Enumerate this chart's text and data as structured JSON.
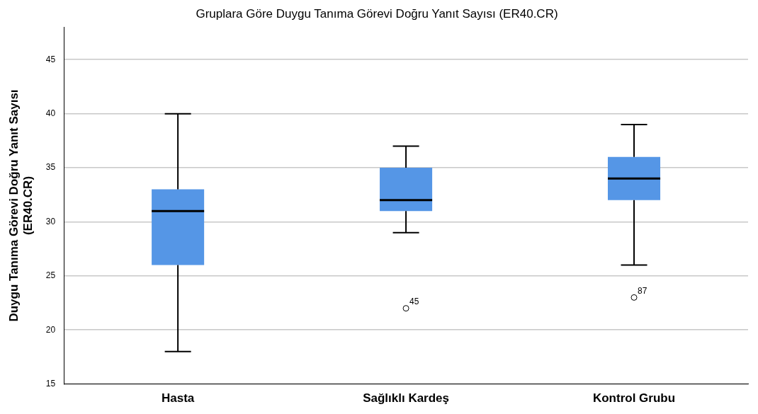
{
  "chart_data": {
    "type": "box",
    "title": "Gruplara Göre Duygu Tanıma Görevi Doğru Yanıt Sayısı (ER40.CR)",
    "ylabel": "Duygu Tanıma Görevi Doğru Yanıt Sayısı (ER40.CR)",
    "categories": [
      "Hasta",
      "Sağlıklı Kardeş",
      "Kontrol Grubu"
    ],
    "color": "#5596e6",
    "boxes": [
      {
        "low": 18,
        "q1": 26,
        "median": 31,
        "q3": 33,
        "high": 40
      },
      {
        "low": 29,
        "q1": 31,
        "median": 32,
        "q3": 35,
        "high": 37,
        "outliers": [
          22
        ]
      },
      {
        "low": 26,
        "q1": 32,
        "median": 34,
        "q3": 36,
        "high": 39,
        "outliers": [
          23
        ]
      }
    ],
    "annotations": [
      "45",
      "87"
    ],
    "ylim": [
      15,
      48
    ],
    "yticks": [
      15,
      20,
      25,
      30,
      35,
      40,
      45
    ],
    "grid": "y"
  }
}
